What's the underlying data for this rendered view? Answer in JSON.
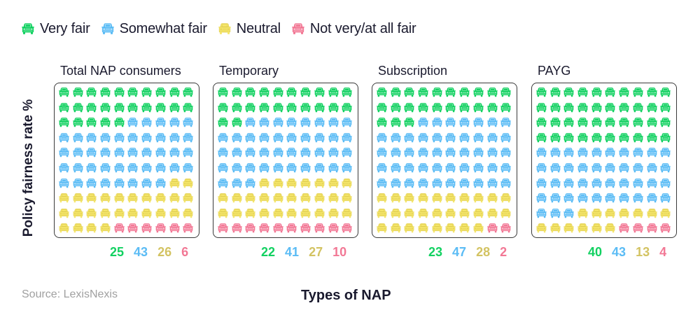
{
  "colors": {
    "very_fair": "#12d161",
    "somewhat_fair": "#5bbcf5",
    "neutral": "#f5e66b",
    "not_fair": "#f27895",
    "neutral_text": "#d3c362",
    "neutral_stroke": "#d9c64a"
  },
  "legend": {
    "items": [
      {
        "label": "Very fair",
        "key": "very_fair"
      },
      {
        "label": "Somewhat fair",
        "key": "somewhat_fair"
      },
      {
        "label": "Neutral",
        "key": "neutral"
      },
      {
        "label": "Not very/at all fair",
        "key": "not_fair"
      }
    ]
  },
  "axes": {
    "ylabel": "Policy fairness rate %",
    "xlabel": "Types of NAP"
  },
  "source": "Source: LexisNexis",
  "panels": [
    {
      "title": "Total NAP consumers",
      "values": [
        25,
        43,
        26,
        6
      ]
    },
    {
      "title": "Temporary",
      "values": [
        22,
        41,
        27,
        10
      ]
    },
    {
      "title": "Subscription",
      "values": [
        23,
        47,
        28,
        2
      ]
    },
    {
      "title": "PAYG",
      "values": [
        40,
        43,
        13,
        4
      ]
    }
  ],
  "chart_data": {
    "type": "waffle",
    "title": "",
    "xlabel": "Types of NAP",
    "ylabel": "Policy fairness rate %",
    "categories": [
      "Total NAP consumers",
      "Temporary",
      "Subscription",
      "PAYG"
    ],
    "series": [
      {
        "name": "Very fair",
        "values": [
          25,
          22,
          23,
          40
        ]
      },
      {
        "name": "Somewhat fair",
        "values": [
          43,
          41,
          47,
          43
        ]
      },
      {
        "name": "Neutral",
        "values": [
          26,
          27,
          28,
          13
        ]
      },
      {
        "name": "Not very/at all fair",
        "values": [
          6,
          10,
          2,
          4
        ]
      }
    ],
    "units_per_icon": 1,
    "grid": "10x10",
    "legend_position": "top-left",
    "source": "Source: LexisNexis"
  }
}
